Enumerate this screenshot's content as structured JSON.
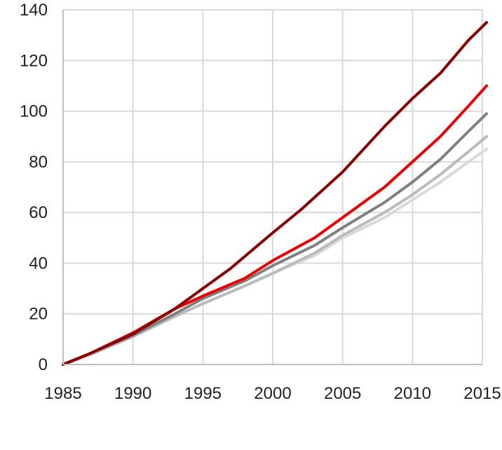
{
  "chart_data": {
    "type": "line",
    "title": "",
    "xlabel": "",
    "ylabel": "",
    "xlim": [
      1985,
      2015
    ],
    "ylim": [
      0,
      140
    ],
    "grid": true,
    "legend": "none",
    "x_ticks": [
      "1985",
      "1990",
      "1995",
      "2000",
      "2005",
      "2010",
      "2015"
    ],
    "y_ticks": [
      "0",
      "20",
      "40",
      "60",
      "80",
      "100",
      "120",
      "140"
    ],
    "series": [
      {
        "color": "#8B0000",
        "x": [
          1985,
          1987,
          1990,
          1993,
          1995,
          1997,
          2000,
          2002,
          2005,
          2008,
          2010,
          2012,
          2014,
          2015.3
        ],
        "y": [
          0,
          4.5,
          12,
          22,
          30,
          38,
          52,
          61,
          76,
          94,
          105,
          115,
          128,
          135
        ]
      },
      {
        "color": "#EE0000",
        "x": [
          1985,
          1987,
          1990,
          1993,
          1995,
          1998,
          2000,
          2003,
          2005,
          2008,
          2010,
          2012,
          2014,
          2015.3
        ],
        "y": [
          0,
          4.5,
          12.5,
          22,
          27,
          34,
          41,
          50,
          58,
          70,
          80,
          90,
          102,
          110
        ]
      },
      {
        "color": "#808080",
        "x": [
          1985,
          1987,
          1990,
          1993,
          1995,
          1998,
          2000,
          2003,
          2005,
          2008,
          2010,
          2012,
          2014,
          2015.3
        ],
        "y": [
          0,
          4.5,
          11.5,
          20,
          26,
          33,
          39,
          47,
          54,
          64,
          72,
          81,
          92,
          99
        ]
      },
      {
        "color": "#BBBBBB",
        "x": [
          1985,
          1987,
          1990,
          1993,
          1995,
          1998,
          2000,
          2003,
          2005,
          2008,
          2010,
          2012,
          2014,
          2015.3
        ],
        "y": [
          0,
          4,
          11,
          19,
          24,
          31,
          36,
          44,
          51,
          60,
          67,
          75,
          84,
          90
        ]
      },
      {
        "color": "#D9D9D9",
        "x": [
          1985,
          1987,
          1990,
          1993,
          1995,
          1998,
          2000,
          2003,
          2005,
          2008,
          2010,
          2012,
          2014,
          2015.3
        ],
        "y": [
          0,
          4,
          11,
          19,
          24,
          31,
          36,
          43,
          50,
          58,
          65,
          72,
          80,
          85
        ]
      }
    ]
  }
}
